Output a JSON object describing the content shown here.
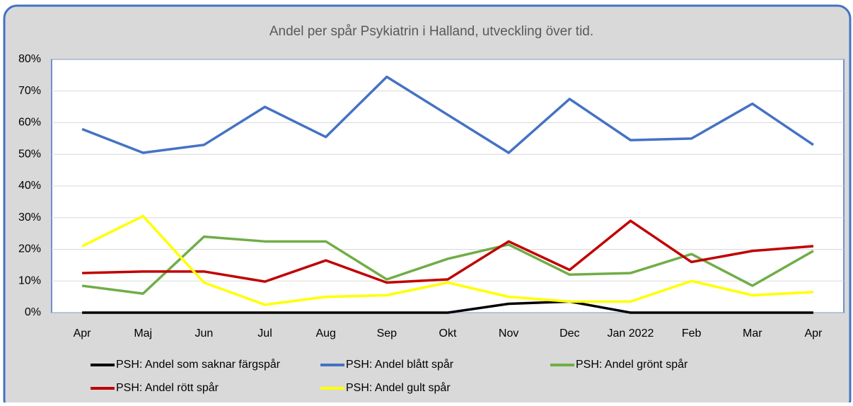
{
  "chart_data": {
    "type": "line",
    "title": "Andel per spår Psykiatrin i Halland, utveckling över tid.",
    "categories": [
      "Apr",
      "Maj",
      "Jun",
      "Jul",
      "Aug",
      "Sep",
      "Okt",
      "Nov",
      "Dec",
      "Jan 2022",
      "Feb",
      "Mar",
      "Apr"
    ],
    "series": [
      {
        "name": "PSH: Andel som saknar färgspår",
        "color": "#000000",
        "values": [
          0,
          0,
          0,
          0,
          0,
          0,
          0,
          2.8,
          3.5,
          0,
          0,
          0,
          0
        ]
      },
      {
        "name": "PSH: Andel blått spår",
        "color": "#4472c4",
        "values": [
          58,
          50.5,
          53,
          65,
          55.5,
          74.5,
          62.5,
          50.5,
          67.5,
          54.5,
          55,
          66,
          53
        ]
      },
      {
        "name": "PSH: Andel grönt spår",
        "color": "#70ad47",
        "values": [
          8.5,
          6,
          24,
          22.5,
          22.5,
          10.5,
          17,
          21.5,
          12,
          12.5,
          18.5,
          8.5,
          19.5
        ]
      },
      {
        "name": "PSH: Andel rött spår",
        "color": "#c00000",
        "values": [
          12.5,
          13,
          13,
          9.8,
          16.5,
          9.5,
          10.5,
          22.5,
          13.5,
          29,
          16,
          19.5,
          21
        ]
      },
      {
        "name": "PSH: Andel gult spår",
        "color": "#ffff00",
        "values": [
          21,
          30.5,
          9.5,
          2.5,
          5,
          5.5,
          9.5,
          5,
          3.5,
          3.5,
          10,
          5.5,
          6.5
        ]
      }
    ],
    "ylim": [
      0,
      80
    ],
    "yticks": [
      {
        "value": 0,
        "label": "0%"
      },
      {
        "value": 10,
        "label": "10%"
      },
      {
        "value": 20,
        "label": "20%"
      },
      {
        "value": 30,
        "label": "30%"
      },
      {
        "value": 40,
        "label": "40%"
      },
      {
        "value": 50,
        "label": "50%"
      },
      {
        "value": 60,
        "label": "60%"
      },
      {
        "value": 70,
        "label": "70%"
      },
      {
        "value": 80,
        "label": "80%"
      }
    ],
    "grid": true
  }
}
